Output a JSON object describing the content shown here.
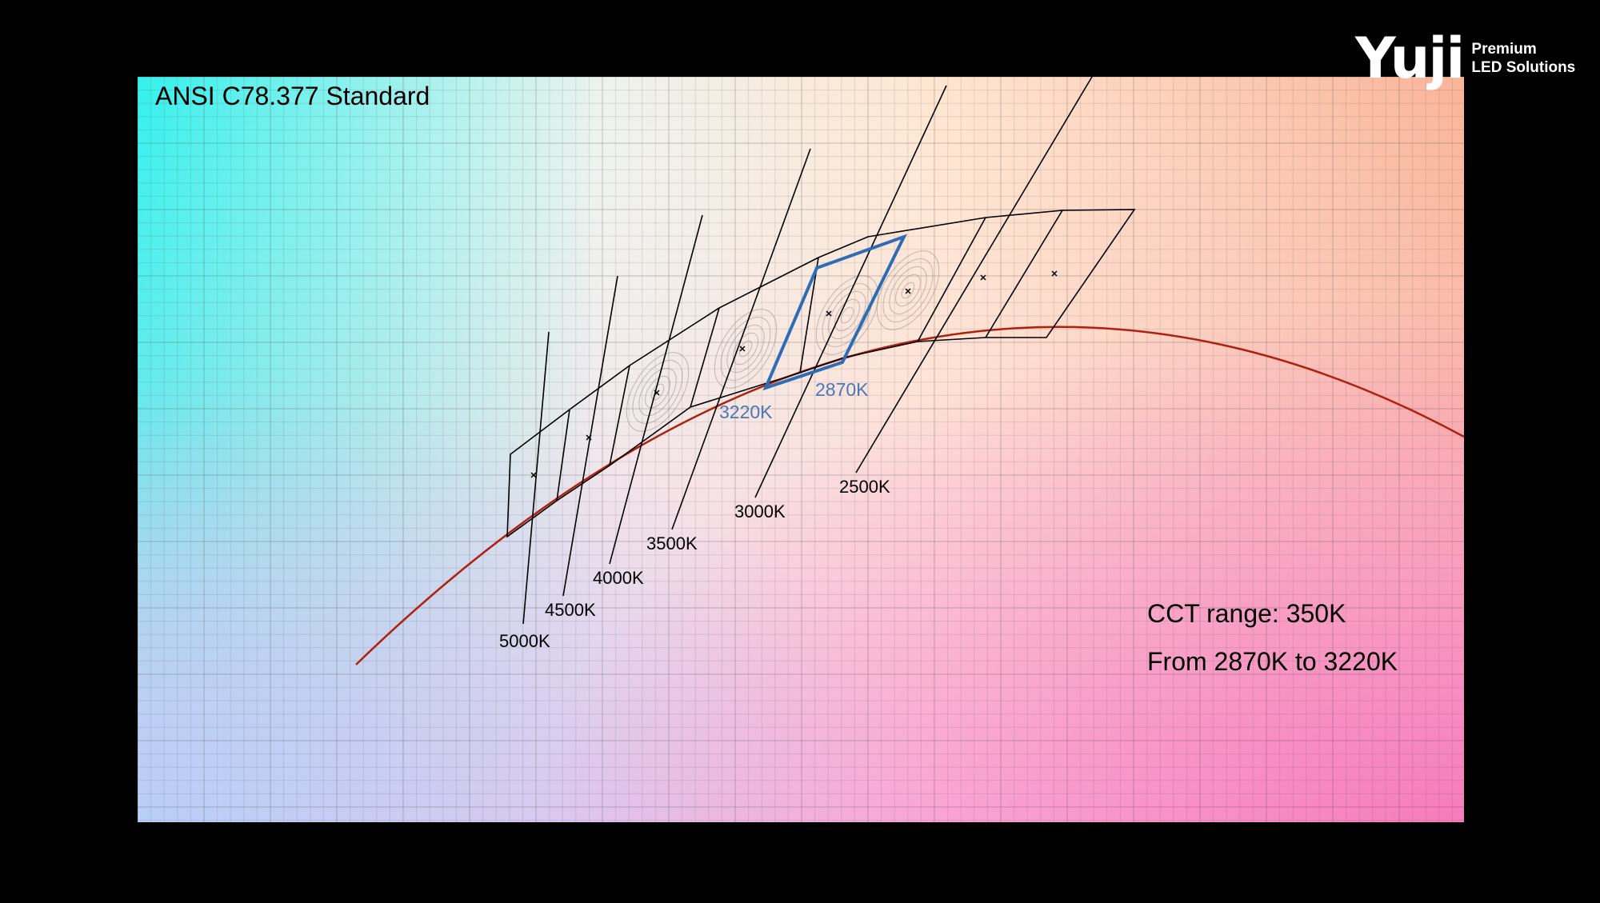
{
  "title": "ANSI C78.377 Standard",
  "brand": {
    "name": "Yuji",
    "tagline_line1": "Premium",
    "tagline_line2": "LED Solutions"
  },
  "cct_labels": [
    "5000K",
    "4500K",
    "4000K",
    "3500K",
    "3000K",
    "2500K"
  ],
  "highlight_labels": [
    "3220K",
    "2870K"
  ],
  "info": {
    "line1": "CCT range: 350K",
    "line2": "From 2870K to 3220K"
  },
  "colors": {
    "locus": "#b0200e",
    "highlight": "#2e6db5",
    "highlight_text": "#4a78b8",
    "quad_line": "#000000"
  }
}
